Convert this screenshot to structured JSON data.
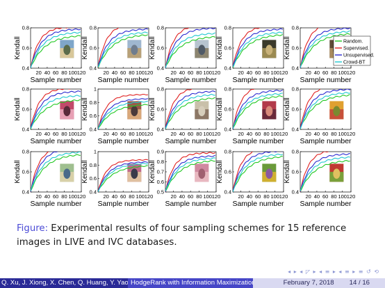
{
  "chart_data": [
    {
      "type": "line",
      "ylim": [
        0.4,
        0.8
      ],
      "yticks": [
        "0.4",
        "0.6",
        "0.8"
      ],
      "xticks": [
        "20",
        "40",
        "60",
        "80",
        "100",
        "120"
      ],
      "xlabel": "Sample number",
      "ylabel": "Kendall",
      "thumb": [
        "#7fa6c9",
        "#d8c79a",
        "#5a6b4a"
      ],
      "end": {
        "random": 0.73,
        "supervised": 0.81,
        "unsupervised": 0.79,
        "crowdbt": 0.76
      }
    },
    {
      "type": "line",
      "ylim": [
        0.4,
        0.8
      ],
      "yticks": [
        "0.4",
        "0.6",
        "0.8"
      ],
      "xticks": [
        "20",
        "40",
        "60",
        "80",
        "100",
        "120"
      ],
      "xlabel": "Sample number",
      "ylabel": "Kendall",
      "thumb": [
        "#9fb7cf",
        "#b8a178",
        "#6f7d8e"
      ],
      "end": {
        "random": 0.74,
        "supervised": 0.84,
        "unsupervised": 0.79,
        "crowdbt": 0.76
      }
    },
    {
      "type": "line",
      "ylim": [
        0.4,
        0.8
      ],
      "yticks": [
        "0.4",
        "0.6",
        "0.8"
      ],
      "xticks": [
        "20",
        "40",
        "60",
        "80",
        "100",
        "120"
      ],
      "xlabel": "Sample number",
      "ylabel": "Kendall",
      "thumb": [
        "#b7c4cf",
        "#8c8570",
        "#4f5a66"
      ],
      "end": {
        "random": 0.72,
        "supervised": 0.83,
        "unsupervised": 0.8,
        "crowdbt": 0.75
      }
    },
    {
      "type": "line",
      "ylim": [
        0.4,
        0.8
      ],
      "yticks": [
        "0.4",
        "0.6",
        "0.8"
      ],
      "xticks": [
        "20",
        "40",
        "60",
        "80",
        "100",
        "120"
      ],
      "xlabel": "Sample number",
      "ylabel": "Kendall",
      "thumb": [
        "#3b3a2c",
        "#9b8a52",
        "#c9b27a"
      ],
      "end": {
        "random": 0.74,
        "supervised": 0.82,
        "unsupervised": 0.79,
        "crowdbt": 0.76
      }
    },
    {
      "type": "line",
      "ylim": [
        0.4,
        0.8
      ],
      "yticks": [
        "0.4",
        "0.6",
        "0.8"
      ],
      "xticks": [
        "20",
        "40",
        "60",
        "80",
        "100",
        "120"
      ],
      "xlabel": "Sample number",
      "ylabel": "Kendall",
      "thumb": [
        "#5e4a36",
        "#a88b5d",
        "#2e2a24"
      ],
      "end": {
        "random": 0.75,
        "supervised": 0.85,
        "unsupervised": 0.8,
        "crowdbt": 0.77
      },
      "legend": [
        "Random.",
        "Supervised.",
        "Unsupervised.",
        "Crowd-BT"
      ]
    },
    {
      "type": "line",
      "ylim": [
        0.4,
        0.8
      ],
      "yticks": [
        "0.4",
        "0.6",
        "0.8"
      ],
      "xticks": [
        "20",
        "40",
        "60",
        "80",
        "100",
        "120"
      ],
      "xlabel": "Sample number",
      "ylabel": "Kendall",
      "thumb": [
        "#c24a6a",
        "#e7a0b4",
        "#5a2a3a"
      ],
      "end": {
        "random": 0.7,
        "supervised": 0.81,
        "unsupervised": 0.78,
        "crowdbt": 0.74
      }
    },
    {
      "type": "line",
      "ylim": [
        0.4,
        1.0
      ],
      "yticks": [
        "0.4",
        "0.6",
        "0.8",
        "1"
      ],
      "xticks": [
        "20",
        "40",
        "60",
        "80",
        "100",
        "120"
      ],
      "xlabel": "Sample number",
      "ylabel": "Kendall",
      "thumb": [
        "#9a5a4a",
        "#d9a87a",
        "#4a3a3a"
      ],
      "end": {
        "random": 0.78,
        "supervised": 0.92,
        "unsupervised": 0.86,
        "crowdbt": 0.82
      }
    },
    {
      "type": "line",
      "ylim": [
        0.4,
        0.8
      ],
      "yticks": [
        "0.4",
        "0.6",
        "0.8"
      ],
      "xticks": [
        "20",
        "40",
        "60",
        "80",
        "100",
        "120"
      ],
      "xlabel": "Sample number",
      "ylabel": "Kendall",
      "thumb": [
        "#c9c0aa",
        "#8c7766",
        "#d6cdbb"
      ],
      "end": {
        "random": 0.72,
        "supervised": 0.82,
        "unsupervised": 0.78,
        "crowdbt": 0.75
      }
    },
    {
      "type": "line",
      "ylim": [
        0.4,
        0.8
      ],
      "yticks": [
        "0.4",
        "0.6",
        "0.8"
      ],
      "xticks": [
        "20",
        "40",
        "60",
        "80",
        "100",
        "120"
      ],
      "xlabel": "Sample number",
      "ylabel": "Kendall",
      "thumb": [
        "#b23a4a",
        "#6a2a3a",
        "#d88a7a"
      ],
      "end": {
        "random": 0.74,
        "supervised": 0.84,
        "unsupervised": 0.79,
        "crowdbt": 0.76
      }
    },
    {
      "type": "line",
      "ylim": [
        0.4,
        0.8
      ],
      "yticks": [
        "0.4",
        "0.6",
        "0.8"
      ],
      "xticks": [
        "20",
        "40",
        "60",
        "80",
        "100",
        "120"
      ],
      "xlabel": "Sample number",
      "ylabel": "Kendall",
      "thumb": [
        "#e0a030",
        "#c7503a",
        "#7a8a30"
      ],
      "end": {
        "random": 0.75,
        "supervised": 0.84,
        "unsupervised": 0.8,
        "crowdbt": 0.77
      }
    },
    {
      "type": "line",
      "ylim": [
        0.4,
        0.8
      ],
      "yticks": [
        "0.4",
        "0.6",
        "0.8"
      ],
      "xticks": [
        "20",
        "40",
        "60",
        "80",
        "100",
        "120"
      ],
      "xlabel": "Sample number",
      "ylabel": "Kendall",
      "thumb": [
        "#9fbf8f",
        "#d8d0a8",
        "#4a6a8a"
      ],
      "end": {
        "random": 0.78,
        "supervised": 0.85,
        "unsupervised": 0.84,
        "crowdbt": 0.8
      }
    },
    {
      "type": "line",
      "ylim": [
        0.4,
        1.0
      ],
      "yticks": [
        "0.4",
        "0.6",
        "0.8",
        "1"
      ],
      "xticks": [
        "20",
        "40",
        "60",
        "80",
        "100",
        "120"
      ],
      "xlabel": "Sample number",
      "ylabel": "Kendall",
      "thumb": [
        "#c06a8a",
        "#e0c0a0",
        "#3a3a4a"
      ],
      "end": {
        "random": 0.8,
        "supervised": 0.88,
        "unsupervised": 0.85,
        "crowdbt": 0.83
      }
    },
    {
      "type": "line",
      "ylim": [
        0.5,
        0.9
      ],
      "yticks": [
        "0.5",
        "0.6",
        "0.7",
        "0.8",
        "0.9"
      ],
      "xticks": [
        "20",
        "40",
        "60",
        "80",
        "100",
        "120"
      ],
      "xlabel": "Sample number",
      "ylabel": "Kendall",
      "thumb": [
        "#d08aa0",
        "#e8b8c0",
        "#a06070"
      ],
      "end": {
        "random": 0.82,
        "supervised": 0.89,
        "unsupervised": 0.86,
        "crowdbt": 0.84
      }
    },
    {
      "type": "line",
      "ylim": [
        0.4,
        0.8
      ],
      "yticks": [
        "0.4",
        "0.6",
        "0.8"
      ],
      "xticks": [
        "20",
        "40",
        "60",
        "80",
        "100",
        "120"
      ],
      "xlabel": "Sample number",
      "ylabel": "Kendall",
      "thumb": [
        "#6a9a3a",
        "#d0b030",
        "#8a5aa0"
      ],
      "end": {
        "random": 0.76,
        "supervised": 0.84,
        "unsupervised": 0.81,
        "crowdbt": 0.78
      }
    },
    {
      "type": "line",
      "ylim": [
        0.4,
        0.8
      ],
      "yticks": [
        "0.4",
        "0.6",
        "0.8"
      ],
      "xticks": [
        "20",
        "40",
        "60",
        "80",
        "100",
        "120"
      ],
      "xlabel": "Sample number",
      "ylabel": "Kendall",
      "thumb": [
        "#c03a30",
        "#7aa03a",
        "#e0c060"
      ],
      "end": {
        "random": 0.72,
        "supervised": 0.82,
        "unsupervised": 0.78,
        "crowdbt": 0.75
      }
    }
  ],
  "series_colors": {
    "random": "#22c822",
    "supervised": "#e02020",
    "unsupervised": "#2a2ad0",
    "crowdbt": "#20c8d0"
  },
  "caption": {
    "label": "Figure:",
    "text": " Experimental results of four sampling schemes for 15 reference images in LIVE and IVC databases."
  },
  "footer": {
    "authors": "Q. Xu, J. Xiong, X. Chen, Q. Huang, Y. Yao",
    "title": "HodgeRank with Information Maximization",
    "date": "February 7, 2018",
    "page": "14 / 16"
  },
  "nav_symbols": "◂ ▸ ◂ ◸ ▸ ◂ ≡ ▸ ◂ ≡ ▸ ≡ ↺ ⟲"
}
